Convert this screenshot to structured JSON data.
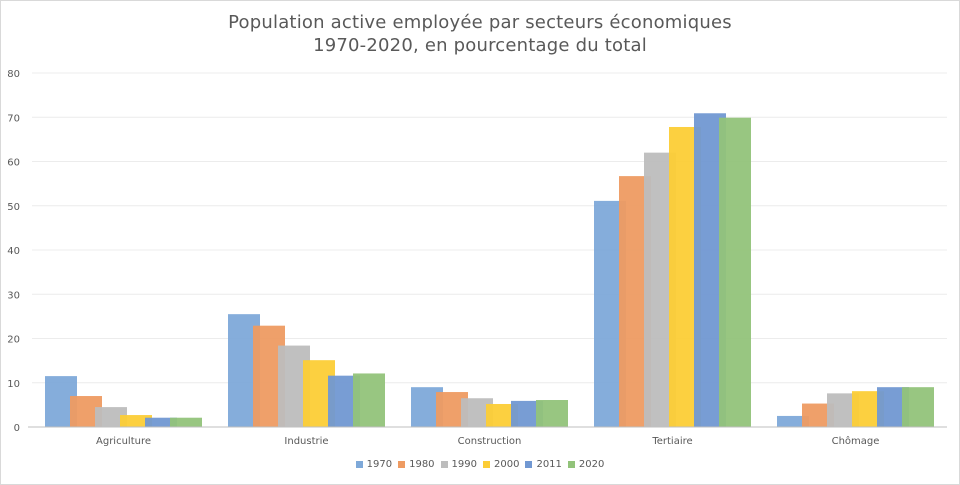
{
  "chart_data": {
    "type": "bar",
    "title": "Population active employée par secteurs économiques",
    "subtitle": "1970-2020, en pourcentage du total",
    "xlabel": "",
    "ylabel": "",
    "ylim": [
      0,
      80
    ],
    "yticks": [
      0,
      10,
      20,
      30,
      40,
      50,
      60,
      70,
      80
    ],
    "grid": true,
    "legend_position": "bottom",
    "categories": [
      "Agriculture",
      "Industrie",
      "Construction",
      "Tertiaire",
      "Chômage"
    ],
    "series": [
      {
        "name": "1970",
        "color": "#7ea9d9",
        "values": [
          11.5,
          25.5,
          9.0,
          51.1,
          2.5
        ]
      },
      {
        "name": "1980",
        "color": "#ee9b62",
        "values": [
          7.0,
          22.9,
          7.9,
          56.7,
          5.3
        ]
      },
      {
        "name": "1990",
        "color": "#bdbdbd",
        "values": [
          4.5,
          18.4,
          6.5,
          62.0,
          7.6
        ]
      },
      {
        "name": "2000",
        "color": "#fccd36",
        "values": [
          2.7,
          15.1,
          5.2,
          67.8,
          8.1
        ]
      },
      {
        "name": "2011",
        "color": "#7198d2",
        "values": [
          2.1,
          11.6,
          5.9,
          70.9,
          9.0
        ]
      },
      {
        "name": "2020",
        "color": "#92c37a",
        "values": [
          2.1,
          12.1,
          6.1,
          69.9,
          9.0
        ]
      }
    ]
  },
  "title": {
    "line1": "Population active employée par secteurs économiques",
    "line2": "1970-2020, en pourcentage du total"
  }
}
